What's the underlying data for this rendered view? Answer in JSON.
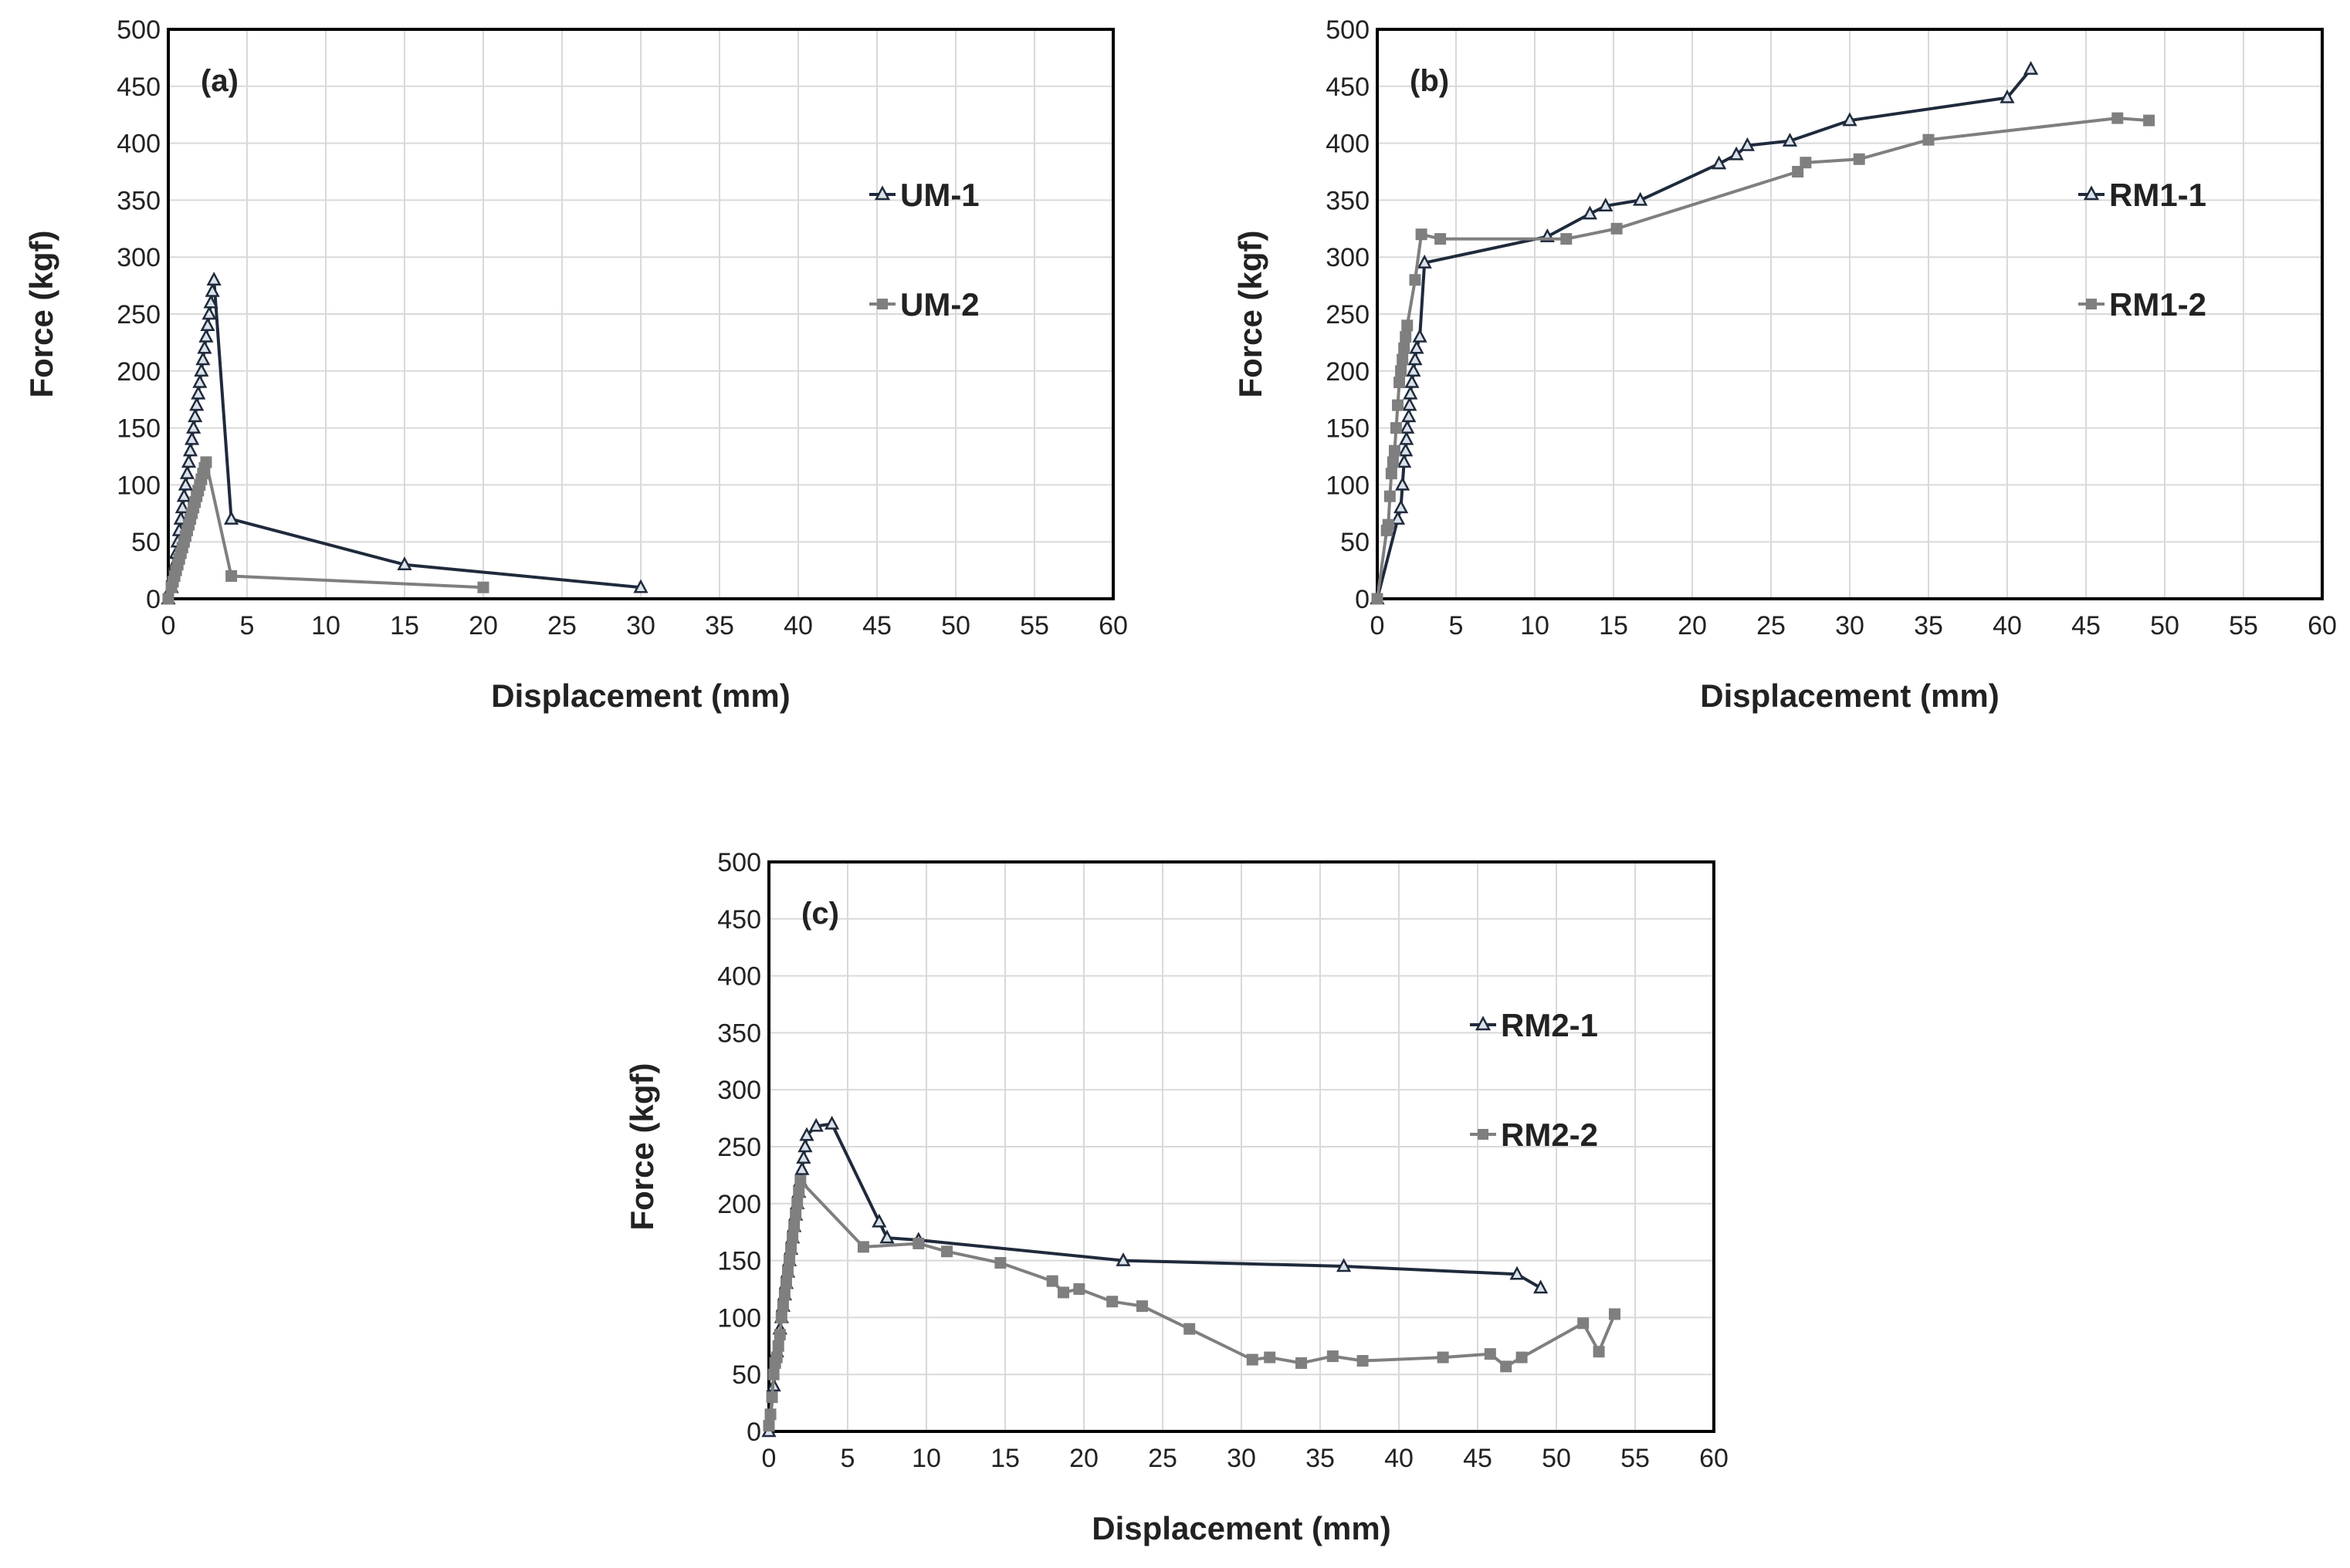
{
  "chart_data": [
    {
      "type": "line",
      "panel_label": "(a)",
      "xlabel": "Displacement (mm)",
      "ylabel": "Force (kgf)",
      "xlim": [
        0,
        60
      ],
      "ylim": [
        0,
        500
      ],
      "xticks": [
        0,
        5,
        10,
        15,
        20,
        25,
        30,
        35,
        40,
        45,
        50,
        55,
        60
      ],
      "yticks": [
        0,
        50,
        100,
        150,
        200,
        250,
        300,
        350,
        400,
        450,
        500
      ],
      "grid": true,
      "legend_position": "right",
      "series": [
        {
          "name": "UM-1",
          "color": "#1f2a3c",
          "marker": "triangle",
          "points": [
            [
              0,
              0
            ],
            [
              0.2,
              10
            ],
            [
              0.3,
              20
            ],
            [
              0.4,
              30
            ],
            [
              0.5,
              40
            ],
            [
              0.6,
              50
            ],
            [
              0.7,
              60
            ],
            [
              0.8,
              70
            ],
            [
              0.9,
              80
            ],
            [
              1.0,
              90
            ],
            [
              1.1,
              100
            ],
            [
              1.2,
              110
            ],
            [
              1.3,
              120
            ],
            [
              1.4,
              130
            ],
            [
              1.5,
              140
            ],
            [
              1.6,
              150
            ],
            [
              1.7,
              160
            ],
            [
              1.8,
              170
            ],
            [
              1.9,
              180
            ],
            [
              2.0,
              190
            ],
            [
              2.1,
              200
            ],
            [
              2.2,
              210
            ],
            [
              2.3,
              220
            ],
            [
              2.4,
              230
            ],
            [
              2.5,
              240
            ],
            [
              2.6,
              250
            ],
            [
              2.7,
              260
            ],
            [
              2.8,
              270
            ],
            [
              2.9,
              280
            ],
            [
              4,
              70
            ],
            [
              15,
              30
            ],
            [
              30,
              10
            ]
          ]
        },
        {
          "name": "UM-2",
          "color": "#7f7f7f",
          "marker": "square",
          "points": [
            [
              0,
              0
            ],
            [
              0.2,
              10
            ],
            [
              0.3,
              15
            ],
            [
              0.4,
              20
            ],
            [
              0.5,
              25
            ],
            [
              0.6,
              30
            ],
            [
              0.7,
              35
            ],
            [
              0.8,
              40
            ],
            [
              0.9,
              45
            ],
            [
              1.0,
              50
            ],
            [
              1.1,
              55
            ],
            [
              1.2,
              60
            ],
            [
              1.3,
              65
            ],
            [
              1.4,
              70
            ],
            [
              1.5,
              75
            ],
            [
              1.6,
              80
            ],
            [
              1.7,
              85
            ],
            [
              1.8,
              90
            ],
            [
              1.9,
              95
            ],
            [
              2.0,
              100
            ],
            [
              2.1,
              105
            ],
            [
              2.2,
              110
            ],
            [
              2.3,
              115
            ],
            [
              2.4,
              120
            ],
            [
              4,
              20
            ],
            [
              20,
              10
            ]
          ]
        }
      ]
    },
    {
      "type": "line",
      "panel_label": "(b)",
      "xlabel": "Displacement (mm)",
      "ylabel": "Force (kgf)",
      "xlim": [
        0,
        60
      ],
      "ylim": [
        0,
        500
      ],
      "xticks": [
        0,
        5,
        10,
        15,
        20,
        25,
        30,
        35,
        40,
        45,
        50,
        55,
        60
      ],
      "yticks": [
        0,
        50,
        100,
        150,
        200,
        250,
        300,
        350,
        400,
        450,
        500
      ],
      "grid": true,
      "legend_position": "right",
      "series": [
        {
          "name": "RM1-1",
          "color": "#1f2a3c",
          "marker": "triangle",
          "points": [
            [
              0,
              0
            ],
            [
              1.3,
              70
            ],
            [
              1.5,
              80
            ],
            [
              1.6,
              100
            ],
            [
              1.7,
              120
            ],
            [
              1.8,
              130
            ],
            [
              1.85,
              140
            ],
            [
              1.9,
              150
            ],
            [
              2.0,
              160
            ],
            [
              2.05,
              170
            ],
            [
              2.1,
              180
            ],
            [
              2.2,
              190
            ],
            [
              2.3,
              200
            ],
            [
              2.4,
              210
            ],
            [
              2.5,
              220
            ],
            [
              2.7,
              230
            ],
            [
              3,
              295
            ],
            [
              10.8,
              318
            ],
            [
              13.5,
              338
            ],
            [
              14.5,
              345
            ],
            [
              16.7,
              350
            ],
            [
              21.7,
              382
            ],
            [
              22.8,
              390
            ],
            [
              23.5,
              398
            ],
            [
              26.2,
              402
            ],
            [
              30,
              420
            ],
            [
              40,
              440
            ],
            [
              41.5,
              465
            ]
          ]
        },
        {
          "name": "RM1-2",
          "color": "#7f7f7f",
          "marker": "square",
          "points": [
            [
              0,
              0
            ],
            [
              0.6,
              60
            ],
            [
              0.7,
              65
            ],
            [
              0.8,
              90
            ],
            [
              0.9,
              110
            ],
            [
              1.0,
              120
            ],
            [
              1.1,
              130
            ],
            [
              1.2,
              150
            ],
            [
              1.3,
              170
            ],
            [
              1.4,
              190
            ],
            [
              1.5,
              200
            ],
            [
              1.6,
              210
            ],
            [
              1.7,
              220
            ],
            [
              1.8,
              230
            ],
            [
              1.9,
              240
            ],
            [
              2.4,
              280
            ],
            [
              2.8,
              320
            ],
            [
              4,
              316
            ],
            [
              12,
              316
            ],
            [
              15.2,
              325
            ],
            [
              26.7,
              375
            ],
            [
              27.2,
              383
            ],
            [
              30.6,
              386
            ],
            [
              35,
              403
            ],
            [
              47,
              422
            ],
            [
              49,
              420
            ]
          ]
        }
      ]
    },
    {
      "type": "line",
      "panel_label": "(c)",
      "xlabel": "Displacement (mm)",
      "ylabel": "Force (kgf)",
      "xlim": [
        0,
        60
      ],
      "ylim": [
        0,
        500
      ],
      "xticks": [
        0,
        5,
        10,
        15,
        20,
        25,
        30,
        35,
        40,
        45,
        50,
        55,
        60
      ],
      "yticks": [
        0,
        50,
        100,
        150,
        200,
        250,
        300,
        350,
        400,
        450,
        500
      ],
      "grid": true,
      "legend_position": "right",
      "series": [
        {
          "name": "RM2-1",
          "color": "#1f2a3c",
          "marker": "triangle",
          "points": [
            [
              0,
              0
            ],
            [
              0.3,
              40
            ],
            [
              0.5,
              70
            ],
            [
              0.7,
              90
            ],
            [
              0.8,
              100
            ],
            [
              0.9,
              110
            ],
            [
              1.0,
              120
            ],
            [
              1.1,
              130
            ],
            [
              1.2,
              140
            ],
            [
              1.3,
              150
            ],
            [
              1.4,
              160
            ],
            [
              1.5,
              170
            ],
            [
              1.6,
              180
            ],
            [
              1.7,
              190
            ],
            [
              1.8,
              200
            ],
            [
              1.9,
              210
            ],
            [
              2.0,
              220
            ],
            [
              2.1,
              230
            ],
            [
              2.2,
              240
            ],
            [
              2.3,
              250
            ],
            [
              2.4,
              260
            ],
            [
              3.0,
              268
            ],
            [
              4.0,
              270
            ],
            [
              7,
              184
            ],
            [
              7.5,
              170
            ],
            [
              9.5,
              168
            ],
            [
              22.5,
              150
            ],
            [
              36.5,
              145
            ],
            [
              47.5,
              138
            ],
            [
              49,
              126
            ]
          ]
        },
        {
          "name": "RM2-2",
          "color": "#7f7f7f",
          "marker": "square",
          "points": [
            [
              0,
              5
            ],
            [
              0.1,
              15
            ],
            [
              0.2,
              30
            ],
            [
              0.3,
              50
            ],
            [
              0.4,
              60
            ],
            [
              0.5,
              65
            ],
            [
              0.6,
              75
            ],
            [
              0.7,
              85
            ],
            [
              0.8,
              100
            ],
            [
              0.9,
              110
            ],
            [
              1.0,
              120
            ],
            [
              1.1,
              130
            ],
            [
              1.2,
              140
            ],
            [
              1.3,
              150
            ],
            [
              1.4,
              160
            ],
            [
              1.5,
              170
            ],
            [
              1.6,
              180
            ],
            [
              1.7,
              190
            ],
            [
              1.8,
              200
            ],
            [
              1.9,
              210
            ],
            [
              2.0,
              220
            ],
            [
              6,
              162
            ],
            [
              9.5,
              165
            ],
            [
              11.3,
              158
            ],
            [
              14.7,
              148
            ],
            [
              18,
              132
            ],
            [
              18.7,
              122
            ],
            [
              19.7,
              125
            ],
            [
              21.8,
              114
            ],
            [
              23.7,
              110
            ],
            [
              26.7,
              90
            ],
            [
              30.7,
              63
            ],
            [
              31.8,
              65
            ],
            [
              33.8,
              60
            ],
            [
              35.8,
              66
            ],
            [
              37.7,
              62
            ],
            [
              42.8,
              65
            ],
            [
              45.8,
              68
            ],
            [
              46.8,
              57
            ],
            [
              47.8,
              65
            ],
            [
              51.7,
              95
            ],
            [
              52.7,
              70
            ],
            [
              53.7,
              103
            ]
          ]
        }
      ]
    }
  ]
}
